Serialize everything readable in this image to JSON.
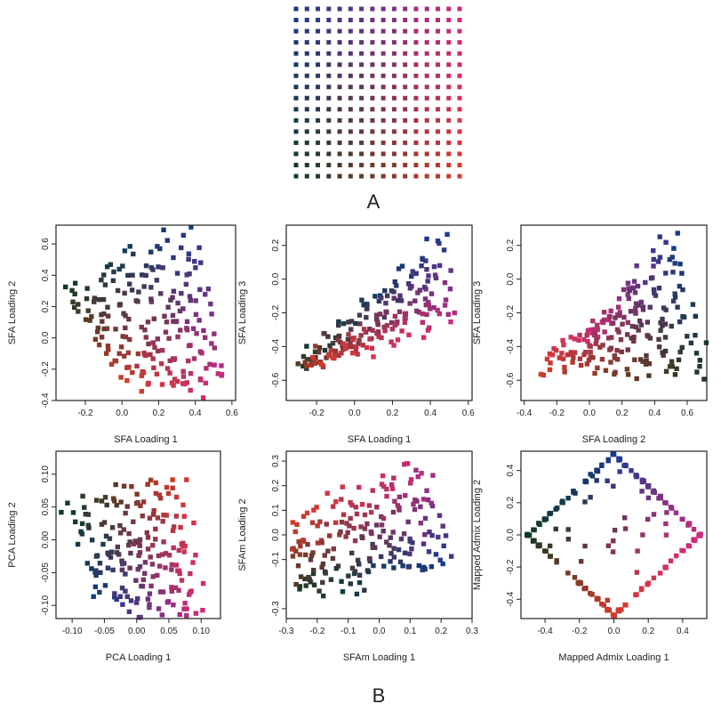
{
  "figure": {
    "panel_a_label": "A",
    "panel_b_label": "B",
    "grid": {
      "rows": 16,
      "cols": 16,
      "color_top_left": "#1a3a8c",
      "color_top_right": "#cc2a7e",
      "color_bottom_left": "#123a24",
      "color_bottom_right": "#d63a2a"
    }
  },
  "chart_data": [
    {
      "type": "scatter",
      "xlabel": "SFA Loading 1",
      "ylabel": "SFA Loading 2",
      "xlim": [
        -0.36,
        0.62
      ],
      "ylim": [
        -0.4,
        0.72
      ],
      "xticks": [
        -0.2,
        0.0,
        0.2,
        0.4,
        0.6
      ],
      "xtick_labels": [
        "-0.2",
        "0.0",
        "0.2",
        "0.4",
        "0.6"
      ],
      "yticks": [
        -0.4,
        -0.2,
        0.0,
        0.2,
        0.4,
        0.6
      ],
      "ytick_labels": [
        "-0.4",
        "-0.2",
        "0.0",
        "0.2",
        "0.4",
        "0.6"
      ],
      "shape": "sfa12"
    },
    {
      "type": "scatter",
      "xlabel": "SFA Loading 1",
      "ylabel": "SFA Loading 3",
      "xlim": [
        -0.36,
        0.62
      ],
      "ylim": [
        -0.72,
        0.32
      ],
      "xticks": [
        -0.2,
        0.0,
        0.2,
        0.4,
        0.6
      ],
      "xtick_labels": [
        "-0.2",
        "0.0",
        "0.2",
        "0.4",
        "0.6"
      ],
      "yticks": [
        -0.6,
        -0.4,
        -0.2,
        0.0,
        0.2
      ],
      "ytick_labels": [
        "-0.6",
        "-0.4",
        "-0.2",
        "0.0",
        "0.2"
      ],
      "shape": "sfa13"
    },
    {
      "type": "scatter",
      "xlabel": "SFA Loading 2",
      "ylabel": "SFA Loading 3",
      "xlim": [
        -0.42,
        0.72
      ],
      "ylim": [
        -0.72,
        0.32
      ],
      "xticks": [
        -0.4,
        -0.2,
        0.0,
        0.2,
        0.4,
        0.6
      ],
      "xtick_labels": [
        "-0.4",
        "-0.2",
        "0.0",
        "0.2",
        "0.4",
        "0.6"
      ],
      "yticks": [
        -0.6,
        -0.4,
        -0.2,
        0.0,
        0.2
      ],
      "ytick_labels": [
        "-0.6",
        "-0.4",
        "-0.2",
        "0.0",
        "0.2"
      ],
      "shape": "sfa23"
    },
    {
      "type": "scatter",
      "xlabel": "PCA Loading 1",
      "ylabel": "PCA Loading 2",
      "xlim": [
        -0.125,
        0.13
      ],
      "ylim": [
        -0.12,
        0.135
      ],
      "xticks": [
        -0.1,
        -0.05,
        0.0,
        0.05,
        0.1
      ],
      "xtick_labels": [
        "-0.10",
        "-0.05",
        "0.00",
        "0.05",
        "0.10"
      ],
      "yticks": [
        -0.1,
        -0.05,
        0.0,
        0.05,
        0.1
      ],
      "ytick_labels": [
        "-0.10",
        "-0.05",
        "0.00",
        "0.05",
        "0.10"
      ],
      "shape": "pca"
    },
    {
      "type": "scatter",
      "xlabel": "SFAm Loading 1",
      "ylabel": "SFAm Loading 2",
      "xlim": [
        -0.3,
        0.3
      ],
      "ylim": [
        -0.34,
        0.34
      ],
      "xticks": [
        -0.3,
        -0.2,
        -0.1,
        0.0,
        0.1,
        0.2,
        0.3
      ],
      "xtick_labels": [
        "-0.3",
        "-0.2",
        "-0.1",
        "0.0",
        "0.1",
        "0.2",
        "0.3"
      ],
      "yticks": [
        -0.3,
        -0.1,
        0.0,
        0.1,
        0.2,
        0.3
      ],
      "ytick_labels": [
        "-0.3",
        "-0.1",
        "0.0",
        "0.1",
        "0.2",
        "0.3"
      ],
      "shape": "sfam"
    },
    {
      "type": "scatter",
      "xlabel": "Mapped Admix Loading 1",
      "ylabel": "Mapped Admix Loading 2",
      "xlim": [
        -0.54,
        0.54
      ],
      "ylim": [
        -0.52,
        0.52
      ],
      "xticks": [
        -0.4,
        -0.2,
        0.0,
        0.2,
        0.4
      ],
      "xtick_labels": [
        "-0.4",
        "-0.2",
        "0.0",
        "0.2",
        "0.4"
      ],
      "yticks": [
        -0.4,
        -0.2,
        0.0,
        0.2,
        0.4
      ],
      "ytick_labels": [
        "-0.4",
        "-0.2",
        "0.0",
        "0.2",
        "0.4"
      ],
      "shape": "admix"
    }
  ]
}
